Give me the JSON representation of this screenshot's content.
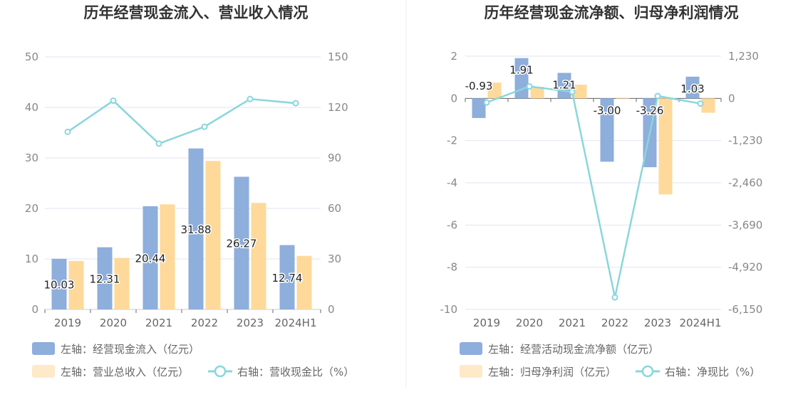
{
  "colors": {
    "bar_blue": "#8eaedc",
    "bar_yellow": "#fed99a",
    "line": "#8ad6dc",
    "grid": "#e3e6f0",
    "divider": "#eeeeee",
    "text_dark": "#333333",
    "axis_text": "#888888"
  },
  "chart_data": [
    {
      "type": "bar",
      "title": "历年经营现金流入、营业收入情况",
      "categories": [
        "2019",
        "2020",
        "2021",
        "2022",
        "2023",
        "2024H1"
      ],
      "left_axis": {
        "ticks": [
          "0",
          "10",
          "20",
          "30",
          "40",
          "50"
        ],
        "range": [
          0,
          50
        ]
      },
      "right_axis": {
        "ticks": [
          "0",
          "30",
          "60",
          "90",
          "120",
          "150"
        ],
        "range": [
          0,
          150
        ]
      },
      "series": [
        {
          "name": "左轴：经营现金流入（亿元）",
          "kind": "bar",
          "axis": "left",
          "values": [
            10.03,
            12.31,
            20.44,
            31.88,
            26.27,
            12.74
          ],
          "labels": [
            "10.03",
            "12.31",
            "20.44",
            "31.88",
            "26.27",
            "12.74"
          ]
        },
        {
          "name": "左轴：营业总收入（亿元）",
          "kind": "bar",
          "axis": "left",
          "values": [
            9.6,
            10.2,
            20.8,
            29.4,
            21.1,
            10.6
          ]
        },
        {
          "name": "右轴：营收现金比（%）",
          "kind": "line",
          "axis": "right",
          "values": [
            105.5,
            124.0,
            98.5,
            108.5,
            125.0,
            122.5
          ]
        }
      ],
      "grid": true,
      "legend_position": "bottom"
    },
    {
      "type": "bar",
      "title": "历年经营现金流净额、归母净利润情况",
      "categories": [
        "2019",
        "2020",
        "2021",
        "2022",
        "2023",
        "2024H1"
      ],
      "left_axis": {
        "ticks": [
          "-10",
          "-8",
          "-6",
          "-4",
          "-2",
          "0",
          "2"
        ],
        "range": [
          -10,
          2
        ]
      },
      "right_axis": {
        "ticks": [
          "-6,150",
          "-4,920",
          "-3,690",
          "-2,460",
          "-1,230",
          "0",
          "1,230"
        ],
        "range": [
          -6150,
          1230
        ]
      },
      "series": [
        {
          "name": "左轴：经营活动现金流净额（亿元）",
          "kind": "bar",
          "axis": "left",
          "values": [
            -0.93,
            1.91,
            1.21,
            -3.0,
            -3.26,
            1.03
          ],
          "labels": [
            "-0.93",
            "1.91",
            "1.21",
            "-3.00",
            "-3.26",
            "1.03"
          ]
        },
        {
          "name": "左轴：归母净利润（亿元）",
          "kind": "bar",
          "axis": "left",
          "values": [
            0.75,
            0.55,
            0.65,
            -0.03,
            -4.55,
            -0.68
          ]
        },
        {
          "name": "右轴：净现比（%）",
          "kind": "line",
          "axis": "right",
          "values": [
            -120,
            350,
            190,
            -5800,
            70,
            -150
          ]
        }
      ],
      "grid": true,
      "legend_position": "bottom"
    }
  ]
}
